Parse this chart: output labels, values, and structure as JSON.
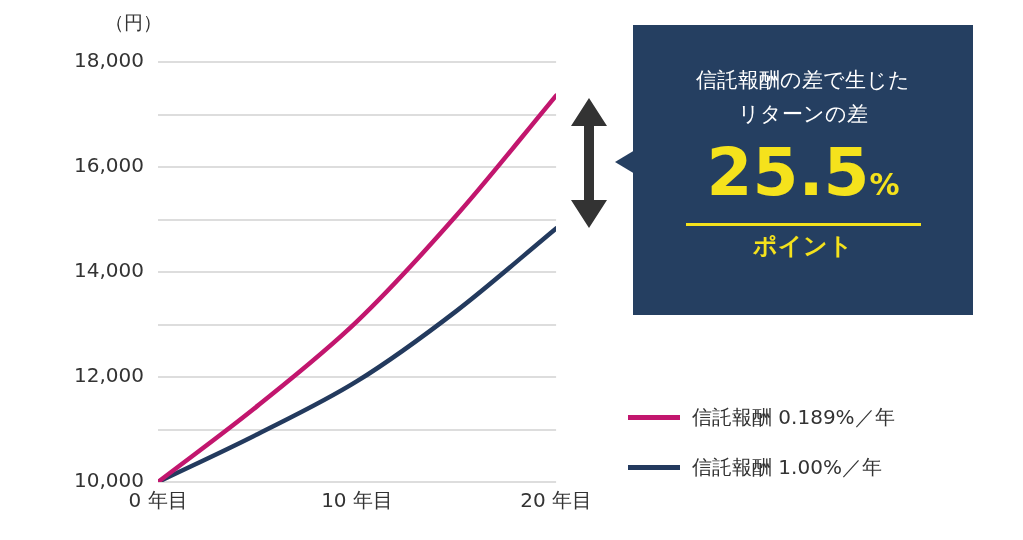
{
  "chart_data": {
    "type": "line",
    "ylabel": "（円）",
    "x": [
      0,
      5,
      10,
      15,
      20
    ],
    "xlim": [
      0,
      20
    ],
    "xticks": [
      {
        "value": 0,
        "label": "0 年目"
      },
      {
        "value": 10,
        "label": "10 年目"
      },
      {
        "value": 20,
        "label": "20 年目"
      }
    ],
    "ylim": [
      10000,
      18000
    ],
    "yticks": [
      {
        "value": 10000,
        "label": "10,000"
      },
      {
        "value": 11000,
        "label": null
      },
      {
        "value": 12000,
        "label": "12,000"
      },
      {
        "value": 13000,
        "label": null
      },
      {
        "value": 14000,
        "label": "14,000"
      },
      {
        "value": 15000,
        "label": null
      },
      {
        "value": 16000,
        "label": "16,000"
      },
      {
        "value": 17000,
        "label": null
      },
      {
        "value": 18000,
        "label": "18,000"
      }
    ],
    "grid": "y",
    "legend": "right",
    "marker": "none",
    "line_style": "solid",
    "series": [
      {
        "name": "信託報酬 0.189%／年",
        "color": "#c2166e",
        "values": [
          10000,
          11450,
          13060,
          15080,
          17360
        ]
      },
      {
        "name": "信託報酬 1.00%／年",
        "color": "#233a5e",
        "values": [
          10000,
          10910,
          11920,
          13260,
          14830
        ]
      }
    ],
    "annotations": [
      "信託報酬の差で生じたリターンの差",
      "25.5%",
      "ポイント"
    ]
  }
}
